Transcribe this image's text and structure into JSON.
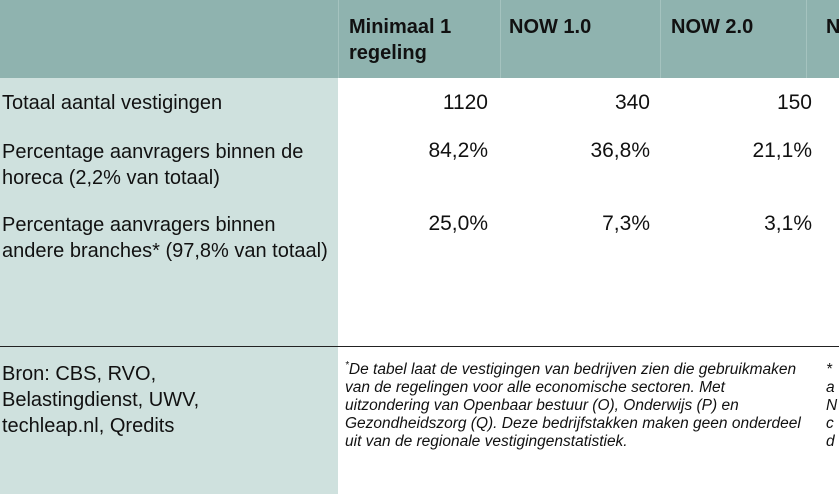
{
  "columns": [
    "Minimaal 1\nregeling",
    "NOW 1.0",
    "NOW 2.0",
    "N"
  ],
  "rows": [
    {
      "label": "Totaal aantal vestigingen",
      "values": [
        "1120",
        "340",
        "150"
      ]
    },
    {
      "label": "Percentage aanvragers binnen de horeca (2,2% van totaal)",
      "values": [
        "84,2%",
        "36,8%",
        "21,1%"
      ]
    },
    {
      "label": "Percentage aanvragers binnen andere branches* (97,8% van totaal)",
      "values": [
        "25,0%",
        "7,3%",
        "3,1%"
      ]
    }
  ],
  "source": "Bron: CBS, RVO,\nBelastingdienst, UWV,\ntechleap.nl, Qredits",
  "footnote": {
    "marker": "*",
    "text": "De tabel laat de vestigingen van bedrijven zien die gebruikmaken van de regelingen voor alle economische sectoren. Met uitzondering van Openbaar bestuur (O), Onderwijs (P) en Gezondheidszorg (Q). Deze bedrijfstakken maken geen onderdeel uit van de regionale vestigingenstatistiek."
  },
  "footnote_cut": "*\na\nN\nc\nd",
  "colors": {
    "header_bg": "#8fb3af",
    "side_bg": "#cfe1de"
  }
}
